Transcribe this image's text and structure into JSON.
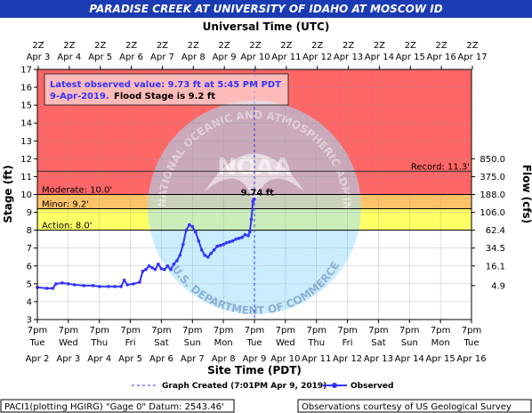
{
  "title": "PARADISE CREEK AT UNIVERSITY OF IDAHO AT MOSCOW ID",
  "top_axis_title": "Universal Time (UTC)",
  "bottom_axis_title": "Site Time (PDT)",
  "left_axis_title": "Stage (ft)",
  "right_axis_title": "Flow (cfs)",
  "top_ticks": [
    {
      "top": "2Z",
      "bottom": "Apr  3"
    },
    {
      "top": "2Z",
      "bottom": "Apr  4"
    },
    {
      "top": "2Z",
      "bottom": "Apr  5"
    },
    {
      "top": "2Z",
      "bottom": "Apr  6"
    },
    {
      "top": "2Z",
      "bottom": "Apr  7"
    },
    {
      "top": "2Z",
      "bottom": "Apr  8"
    },
    {
      "top": "2Z",
      "bottom": "Apr  9"
    },
    {
      "top": "2Z",
      "bottom": "Apr 10"
    },
    {
      "top": "2Z",
      "bottom": "Apr 11"
    },
    {
      "top": "2Z",
      "bottom": "Apr 12"
    },
    {
      "top": "2Z",
      "bottom": "Apr 13"
    },
    {
      "top": "2Z",
      "bottom": "Apr 14"
    },
    {
      "top": "2Z",
      "bottom": "Apr 15"
    },
    {
      "top": "2Z",
      "bottom": "Apr 16"
    },
    {
      "top": "2Z",
      "bottom": "Apr 17"
    }
  ],
  "bottom_ticks": [
    {
      "l1": "7pm",
      "l2": "Tue",
      "l3": "Apr  2"
    },
    {
      "l1": "7pm",
      "l2": "Wed",
      "l3": "Apr  3"
    },
    {
      "l1": "7pm",
      "l2": "Thu",
      "l3": "Apr  4"
    },
    {
      "l1": "7pm",
      "l2": "Fri",
      "l3": "Apr  5"
    },
    {
      "l1": "7pm",
      "l2": "Sat",
      "l3": "Apr  6"
    },
    {
      "l1": "7pm",
      "l2": "Sun",
      "l3": "Apr  7"
    },
    {
      "l1": "7pm",
      "l2": "Mon",
      "l3": "Apr  8"
    },
    {
      "l1": "7pm",
      "l2": "Tue",
      "l3": "Apr  9"
    },
    {
      "l1": "7pm",
      "l2": "Wed",
      "l3": "Apr 10"
    },
    {
      "l1": "7pm",
      "l2": "Thu",
      "l3": "Apr 11"
    },
    {
      "l1": "7pm",
      "l2": "Fri",
      "l3": "Apr 12"
    },
    {
      "l1": "7pm",
      "l2": "Sat",
      "l3": "Apr 13"
    },
    {
      "l1": "7pm",
      "l2": "Sun",
      "l3": "Apr 14"
    },
    {
      "l1": "7pm",
      "l2": "Mon",
      "l3": "Apr 15"
    },
    {
      "l1": "7pm",
      "l2": "Tue",
      "l3": "Apr 16"
    }
  ],
  "stage_ticks": [
    "3",
    "4",
    "5",
    "6",
    "7",
    "8",
    "9",
    "10",
    "11",
    "12",
    "13",
    "14",
    "15",
    "16",
    "17"
  ],
  "flow_ticks": [
    {
      "stage": 4.9,
      "label": "4.9"
    },
    {
      "stage": 6.0,
      "label": "16.1"
    },
    {
      "stage": 7.0,
      "label": "34.5"
    },
    {
      "stage": 8.0,
      "label": "62.4"
    },
    {
      "stage": 9.0,
      "label": "106.0"
    },
    {
      "stage": 10.0,
      "label": "188.0"
    },
    {
      "stage": 11.0,
      "label": "375.0"
    },
    {
      "stage": 12.0,
      "label": "850.0"
    }
  ],
  "thresholds": {
    "action": {
      "value": 8.0,
      "label": "Action: 8.0'",
      "color": "#ffff00"
    },
    "minor": {
      "value": 9.2,
      "label": "Minor: 9.2'",
      "color": "#ffa500"
    },
    "moderate": {
      "value": 10.0,
      "label": "Moderate: 10.0'",
      "color": "#ff0000"
    },
    "record": {
      "value": 11.3,
      "label": "Record: 11.3'"
    }
  },
  "info_box": {
    "line1": "Latest observed value: 9.73 ft at 5:45 PM PDT",
    "line2a": "9-Apr-2019.",
    "line2b": "Flood Stage is 9.2 ft"
  },
  "peak_label": "9.74 ft",
  "legend": {
    "created": "Graph Created (7:01PM Apr 9, 2019)",
    "observed": "Observed"
  },
  "footer": {
    "left": "PACI1(plotting HGIRG) \"Gage 0\" Datum: 2543.46'",
    "right": "Observations courtesy of US Geological Survey"
  },
  "watermark": {
    "arc_top": "NATIONAL OCEANIC AND ATMOSPHERIC ADMINISTRATION",
    "arc_bottom": "U.S. DEPARTMENT OF COMMERCE",
    "center": "NOAA"
  },
  "colors": {
    "title_bg": "#1a3bb3",
    "observed": "#3333ff",
    "record_line": "#333333"
  },
  "chart_data": {
    "type": "line",
    "title": "PARADISE CREEK AT UNIVERSITY OF IDAHO AT MOSCOW ID",
    "xlabel": "Site Time (PDT)",
    "ylabel": "Stage (ft)",
    "y2label": "Flow (cfs)",
    "ylim": [
      3,
      17
    ],
    "x_unit": "days since Apr 2 7pm PDT",
    "xlim": [
      0,
      14
    ],
    "graph_created_x": 7.0,
    "grid": true,
    "series": [
      {
        "name": "Observed",
        "points": [
          [
            0.0,
            4.8
          ],
          [
            0.3,
            4.75
          ],
          [
            0.5,
            4.75
          ],
          [
            0.6,
            5.0
          ],
          [
            0.8,
            5.05
          ],
          [
            1.0,
            5.0
          ],
          [
            1.2,
            4.95
          ],
          [
            1.5,
            4.9
          ],
          [
            1.8,
            4.9
          ],
          [
            2.0,
            4.85
          ],
          [
            2.3,
            4.85
          ],
          [
            2.5,
            4.85
          ],
          [
            2.7,
            4.85
          ],
          [
            2.8,
            5.2
          ],
          [
            2.9,
            4.95
          ],
          [
            3.1,
            5.0
          ],
          [
            3.3,
            5.1
          ],
          [
            3.4,
            5.7
          ],
          [
            3.5,
            5.8
          ],
          [
            3.6,
            6.0
          ],
          [
            3.7,
            5.9
          ],
          [
            3.8,
            5.8
          ],
          [
            3.9,
            6.1
          ],
          [
            4.0,
            5.85
          ],
          [
            4.1,
            5.8
          ],
          [
            4.2,
            6.0
          ],
          [
            4.3,
            5.8
          ],
          [
            4.4,
            6.1
          ],
          [
            4.5,
            6.3
          ],
          [
            4.6,
            6.6
          ],
          [
            4.7,
            7.2
          ],
          [
            4.8,
            8.0
          ],
          [
            4.9,
            8.3
          ],
          [
            5.0,
            8.2
          ],
          [
            5.1,
            7.9
          ],
          [
            5.2,
            7.4
          ],
          [
            5.3,
            6.9
          ],
          [
            5.4,
            6.6
          ],
          [
            5.5,
            6.5
          ],
          [
            5.6,
            6.7
          ],
          [
            5.7,
            6.9
          ],
          [
            5.8,
            7.1
          ],
          [
            5.9,
            7.15
          ],
          [
            6.0,
            7.2
          ],
          [
            6.1,
            7.3
          ],
          [
            6.2,
            7.35
          ],
          [
            6.3,
            7.4
          ],
          [
            6.4,
            7.5
          ],
          [
            6.5,
            7.55
          ],
          [
            6.6,
            7.6
          ],
          [
            6.7,
            7.75
          ],
          [
            6.8,
            7.7
          ],
          [
            6.85,
            7.9
          ],
          [
            6.9,
            8.6
          ],
          [
            6.95,
            9.6
          ],
          [
            6.98,
            9.74
          ],
          [
            7.0,
            9.73
          ]
        ]
      }
    ]
  }
}
